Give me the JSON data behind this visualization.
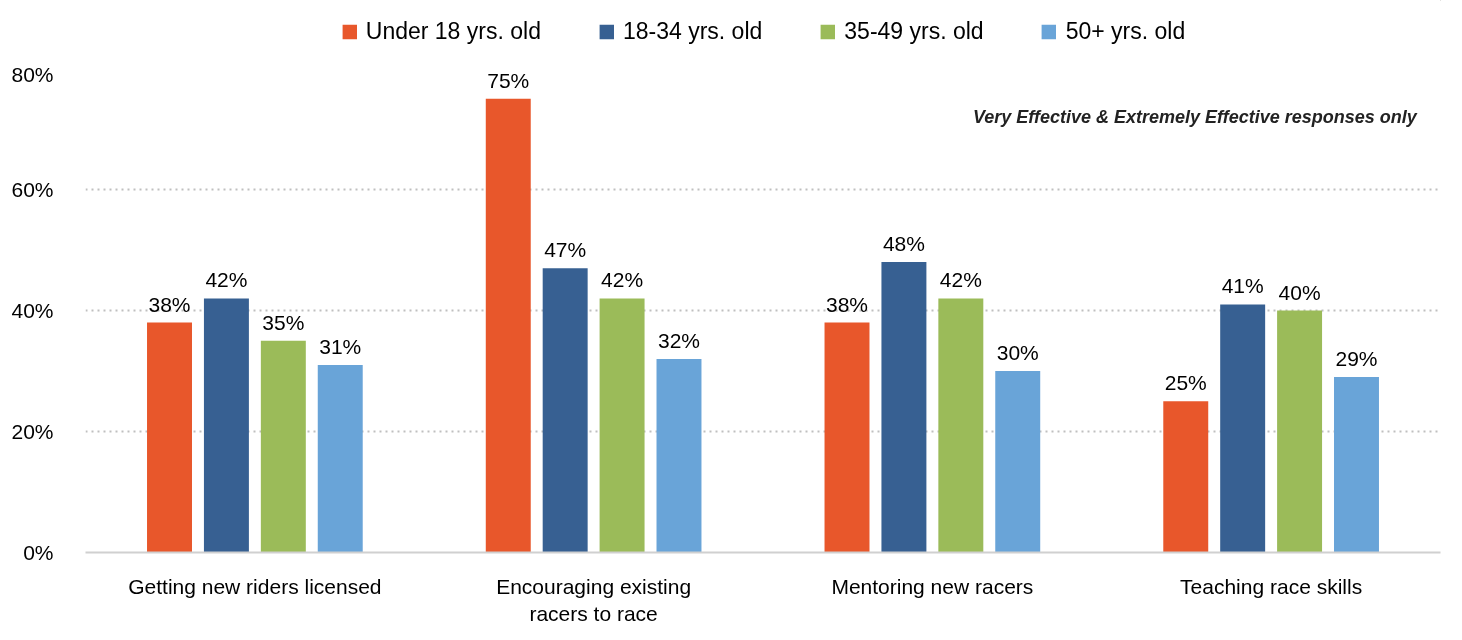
{
  "chart_data": {
    "type": "bar",
    "categories": [
      "Getting new riders licensed",
      "Encouraging existing racers to race",
      "Mentoring new racers",
      "Teaching race skills"
    ],
    "series": [
      {
        "name": "Under 18 yrs. old",
        "color": "#e8572b",
        "values": [
          38,
          75,
          38,
          25
        ],
        "value_labels": [
          "38%",
          "75%",
          "38%",
          "25%"
        ]
      },
      {
        "name": "18-34 yrs. old",
        "color": "#376092",
        "values": [
          42,
          47,
          48,
          41
        ],
        "value_labels": [
          "42%",
          "47%",
          "48%",
          "41%"
        ]
      },
      {
        "name": "35-49 yrs. old",
        "color": "#9bbb59",
        "values": [
          35,
          42,
          42,
          40
        ],
        "value_labels": [
          "35%",
          "42%",
          "42%",
          "40%"
        ]
      },
      {
        "name": "50+ yrs. old",
        "color": "#69a4d8",
        "values": [
          31,
          32,
          30,
          29
        ],
        "value_labels": [
          "31%",
          "32%",
          "30%",
          "29%"
        ]
      }
    ],
    "ylim": [
      0,
      80
    ],
    "yticks": [
      {
        "value": 0,
        "label": "0%"
      },
      {
        "value": 20,
        "label": "20%"
      },
      {
        "value": 40,
        "label": "40%"
      },
      {
        "value": 60,
        "label": "60%"
      },
      {
        "value": 80,
        "label": "80%"
      }
    ],
    "grid": "y",
    "legend": "top",
    "annotations": [
      "Very Effective & Extremely Effective responses only"
    ]
  }
}
